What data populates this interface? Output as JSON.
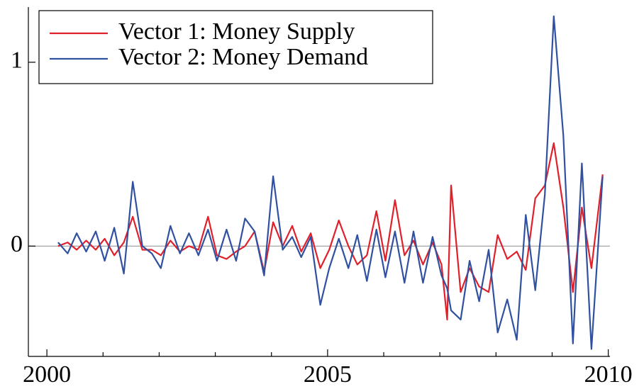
{
  "chart_data": {
    "type": "line",
    "x": [
      2000.2,
      2000.37,
      2000.53,
      2000.7,
      2000.87,
      2001.03,
      2001.2,
      2001.37,
      2001.53,
      2001.7,
      2001.87,
      2002.03,
      2002.2,
      2002.37,
      2002.53,
      2002.7,
      2002.87,
      2003.03,
      2003.2,
      2003.37,
      2003.53,
      2003.7,
      2003.87,
      2004.03,
      2004.2,
      2004.37,
      2004.53,
      2004.7,
      2004.87,
      2005.03,
      2005.2,
      2005.37,
      2005.53,
      2005.7,
      2005.87,
      2006.03,
      2006.2,
      2006.37,
      2006.53,
      2006.7,
      2006.87,
      2007.03,
      2007.13,
      2007.2,
      2007.37,
      2007.53,
      2007.7,
      2007.87,
      2008.03,
      2008.2,
      2008.37,
      2008.53,
      2008.7,
      2008.87,
      2009.03,
      2009.2,
      2009.37,
      2009.53,
      2009.7,
      2009.9
    ],
    "series": [
      {
        "name": "Vector 1: Money Supply",
        "color": "#e0202a",
        "values": [
          0,
          0.02,
          -0.02,
          0.03,
          -0.02,
          0.04,
          -0.05,
          0.02,
          0.16,
          -0.02,
          -0.02,
          -0.05,
          0.03,
          -0.03,
          0,
          -0.02,
          0.16,
          -0.05,
          -0.07,
          -0.03,
          0,
          0.08,
          -0.14,
          0.13,
          0,
          0.11,
          -0.03,
          0.07,
          -0.12,
          -0.02,
          0.14,
          0,
          -0.1,
          -0.05,
          0.19,
          -0.08,
          0.25,
          -0.05,
          0.03,
          -0.1,
          0.02,
          -0.1,
          -0.4,
          0.33,
          -0.25,
          -0.12,
          -0.22,
          -0.25,
          0.06,
          -0.07,
          -0.03,
          -0.13,
          0.26,
          0.33,
          0.56,
          0.21,
          -0.25,
          0.21,
          -0.12,
          0.39
        ]
      },
      {
        "name": "Vector 2: Money Demand",
        "color": "#3050a0",
        "values": [
          0.02,
          -0.04,
          0.07,
          -0.03,
          0.08,
          -0.08,
          0.1,
          -0.15,
          0.35,
          0,
          -0.04,
          -0.12,
          0.11,
          -0.04,
          0.07,
          -0.05,
          0.09,
          -0.08,
          0.09,
          -0.08,
          0.15,
          0.08,
          -0.16,
          0.38,
          -0.02,
          0.05,
          -0.06,
          0.05,
          -0.32,
          -0.12,
          0.04,
          -0.12,
          0.06,
          -0.19,
          0.09,
          -0.17,
          0.08,
          -0.2,
          0.08,
          -0.2,
          0.05,
          -0.16,
          -0.23,
          -0.35,
          -0.4,
          -0.08,
          -0.3,
          -0.02,
          -0.47,
          -0.29,
          -0.51,
          0.17,
          -0.24,
          0.28,
          1.25,
          0.6,
          -0.53,
          0.45,
          -0.56,
          0.38
        ]
      }
    ],
    "xlim": [
      1999.67,
      2010.03
    ],
    "xticks": [
      2000,
      2005,
      2010
    ],
    "xminor": [
      2001,
      2002,
      2003,
      2004,
      2006,
      2007,
      2008,
      2009
    ],
    "ylim": [
      -0.6,
      1.3
    ],
    "yticks": [
      0,
      1
    ],
    "zero_line": true,
    "legend": "upper left"
  }
}
